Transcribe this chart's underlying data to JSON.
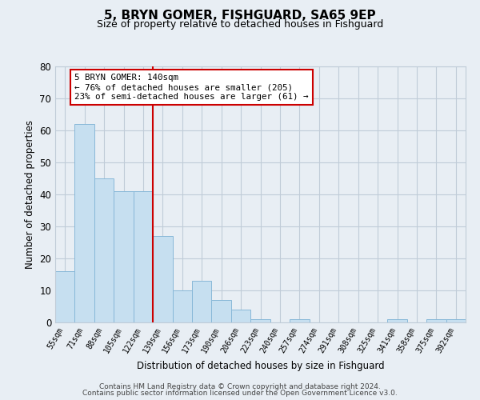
{
  "title": "5, BRYN GOMER, FISHGUARD, SA65 9EP",
  "subtitle": "Size of property relative to detached houses in Fishguard",
  "xlabel": "Distribution of detached houses by size in Fishguard",
  "ylabel": "Number of detached properties",
  "bin_labels": [
    "55sqm",
    "71sqm",
    "88sqm",
    "105sqm",
    "122sqm",
    "139sqm",
    "156sqm",
    "173sqm",
    "190sqm",
    "206sqm",
    "223sqm",
    "240sqm",
    "257sqm",
    "274sqm",
    "291sqm",
    "308sqm",
    "325sqm",
    "341sqm",
    "358sqm",
    "375sqm",
    "392sqm"
  ],
  "bar_heights": [
    16,
    62,
    45,
    41,
    41,
    27,
    10,
    13,
    7,
    4,
    1,
    0,
    1,
    0,
    0,
    0,
    0,
    1,
    0,
    1,
    1
  ],
  "bar_color": "#c6dff0",
  "bar_edge_color": "#88b8d8",
  "vline_color": "#cc0000",
  "annotation_text": "5 BRYN GOMER: 140sqm\n← 76% of detached houses are smaller (205)\n23% of semi-detached houses are larger (61) →",
  "annotation_box_edge": "#cc0000",
  "ylim": [
    0,
    80
  ],
  "yticks": [
    0,
    10,
    20,
    30,
    40,
    50,
    60,
    70,
    80
  ],
  "footer_line1": "Contains HM Land Registry data © Crown copyright and database right 2024.",
  "footer_line2": "Contains public sector information licensed under the Open Government Licence v3.0.",
  "background_color": "#e8eef4",
  "plot_bg_color": "#e8eef4",
  "grid_color": "#c0ccd8",
  "vline_bin_index": 5
}
